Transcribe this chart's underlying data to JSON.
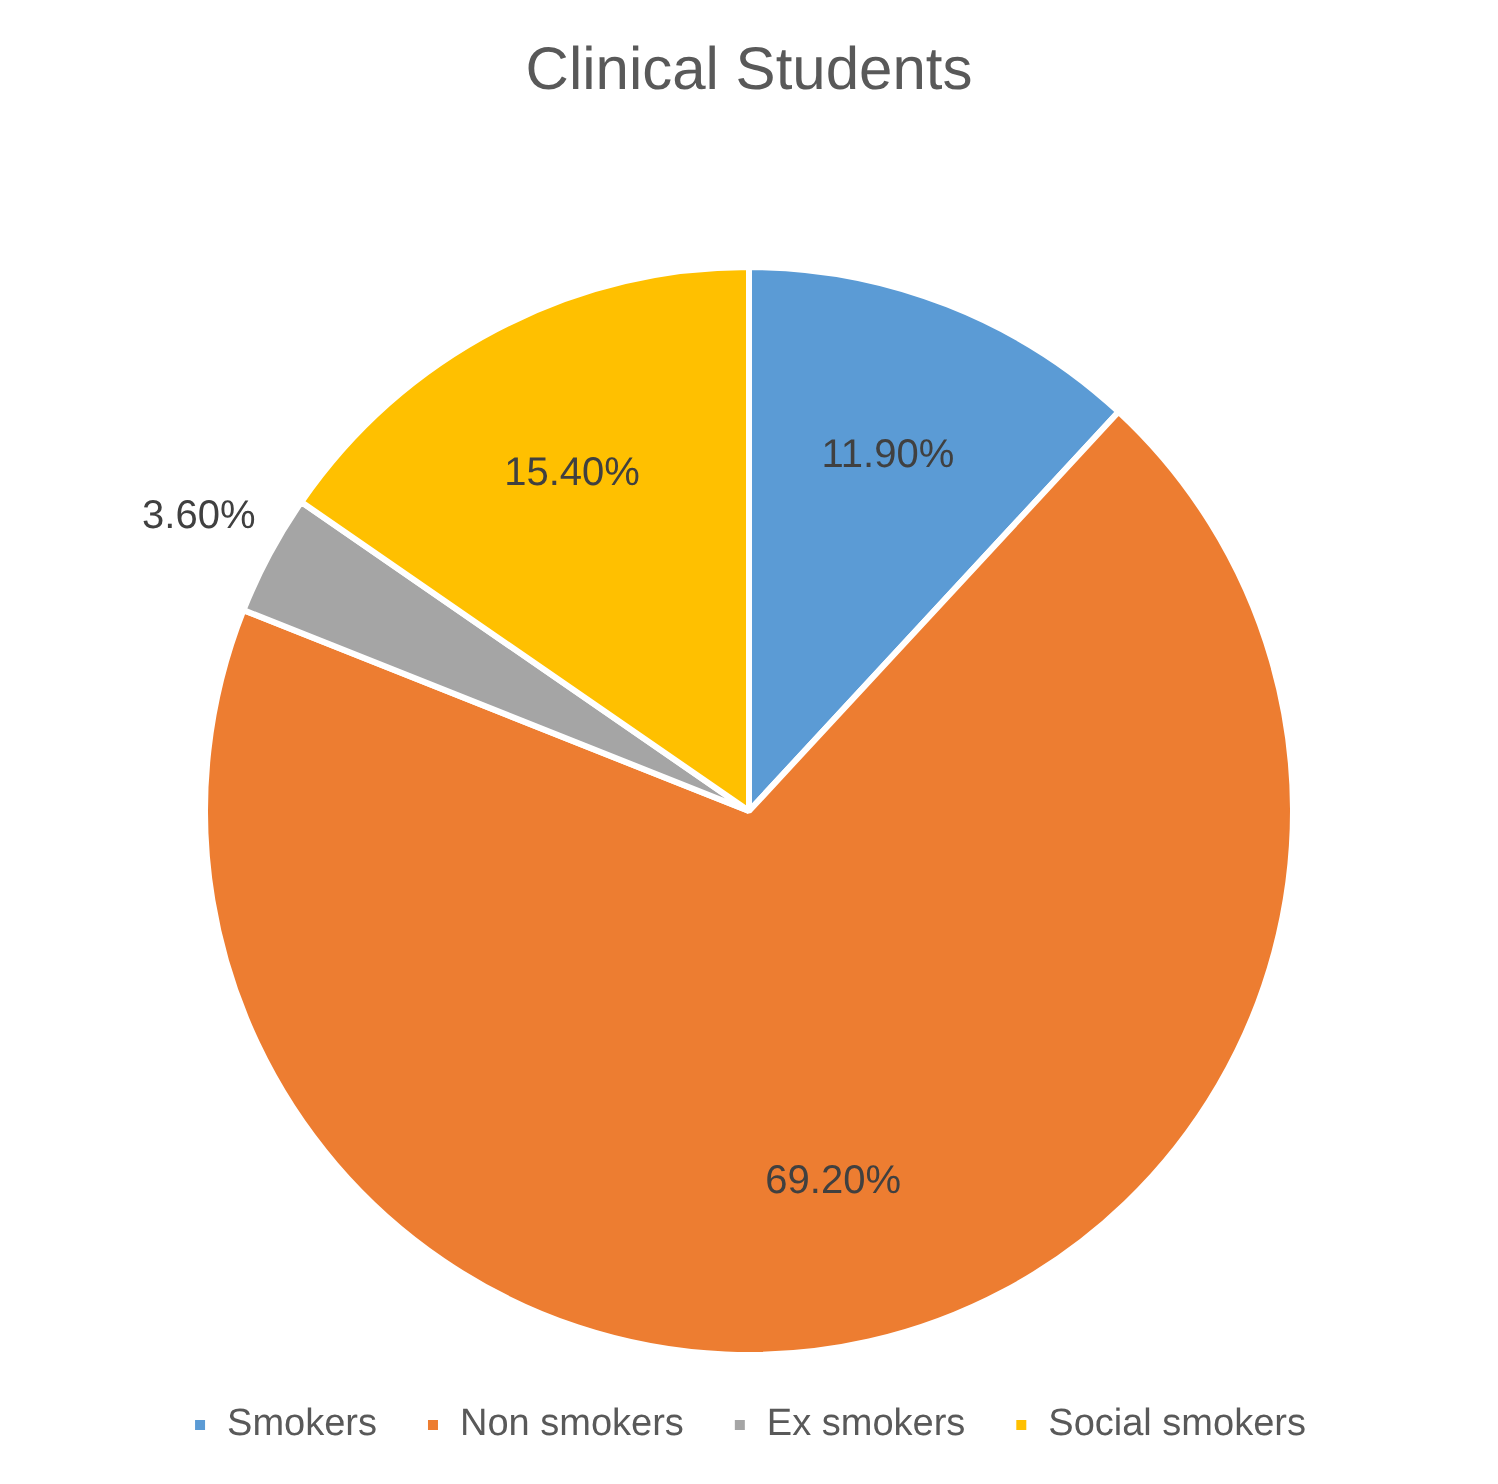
{
  "chart_data": {
    "type": "pie",
    "title": "Clinical Students",
    "categories": [
      "Smokers",
      "Non smokers",
      "Ex smokers",
      "Social smokers"
    ],
    "values": [
      11.9,
      69.2,
      3.6,
      15.4
    ],
    "colors": [
      "#5b9bd5",
      "#ed7d31",
      "#a5a5a5",
      "#ffc000"
    ],
    "value_labels": [
      "11.90%",
      "69.20%",
      "3.60%",
      "15.40%"
    ],
    "legend": "bottom"
  }
}
